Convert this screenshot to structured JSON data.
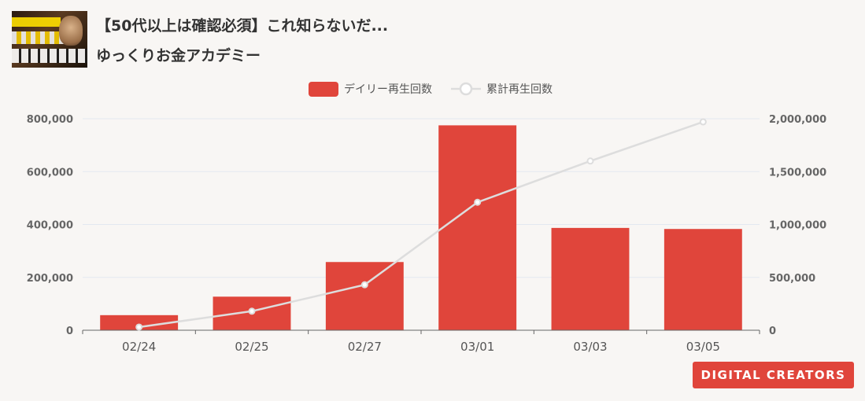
{
  "header": {
    "title": "【50代以上は確認必須】これ知らないだ...",
    "channel": "ゆっくりお金アカデミー"
  },
  "badge": {
    "label": "DIGITAL CREATORS"
  },
  "colors": {
    "bar": "#e0453b",
    "line": "#dddddd",
    "axis": "#666666",
    "grid": "#e3e8f0"
  },
  "chart_data": {
    "type": "bar",
    "categories": [
      "02/24",
      "02/25",
      "02/27",
      "03/01",
      "03/03",
      "03/05"
    ],
    "series": [
      {
        "name": "デイリー再生回数",
        "type": "bar",
        "axis": "left",
        "values": [
          57000,
          127000,
          258000,
          775000,
          387000,
          383000
        ]
      },
      {
        "name": "累計再生回数",
        "type": "line",
        "axis": "right",
        "values": [
          30000,
          180000,
          430000,
          1210000,
          1600000,
          1970000
        ]
      }
    ],
    "y_left": {
      "min": 0,
      "max": 800000,
      "ticks": [
        "0",
        "200,000",
        "400,000",
        "600,000",
        "800,000"
      ]
    },
    "y_right": {
      "min": 0,
      "max": 2000000,
      "ticks": [
        "0",
        "500,000",
        "1,000,000",
        "1,500,000",
        "2,000,000"
      ]
    },
    "grid": true,
    "legend": "top-center"
  }
}
